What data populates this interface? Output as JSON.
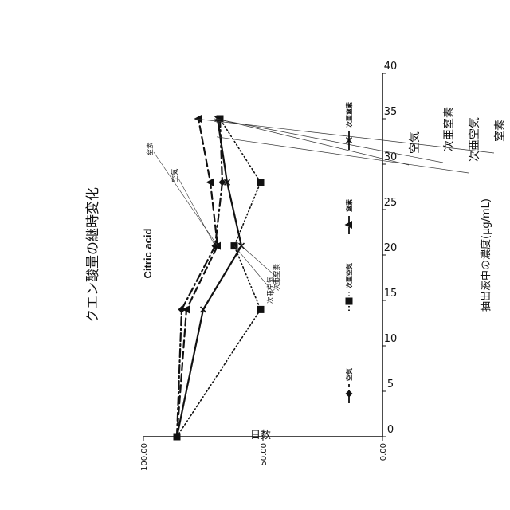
{
  "chart_data": {
    "type": "line",
    "title": "クエン酸量の継時変化",
    "subtitle": "Citric acid",
    "xlabel": "日数",
    "ylabel": "抽出液中の濃度(μg/mL)",
    "xlim": [
      0,
      40
    ],
    "ylim": [
      0,
      100
    ],
    "x_ticks": [
      "0",
      "5",
      "10",
      "15",
      "20",
      "25",
      "30",
      "35",
      "40"
    ],
    "y_ticks": [
      "0.00",
      "50.00",
      "100.00"
    ],
    "grid": false,
    "legend_position": "bottom",
    "series": [
      {
        "name": "空気",
        "style": "dash-dot",
        "marker": "diamond",
        "x": [
          0,
          14,
          21,
          28,
          35
        ],
        "y": [
          86,
          84,
          70,
          67,
          68
        ]
      },
      {
        "name": "次亜空気",
        "style": "dotted",
        "marker": "square",
        "x": [
          0,
          14,
          21,
          28,
          35
        ],
        "y": [
          86,
          51,
          62,
          51,
          68
        ]
      },
      {
        "name": "窒素",
        "style": "dashed",
        "marker": "triangle",
        "x": [
          0,
          14,
          21,
          28,
          35
        ],
        "y": [
          86,
          82,
          69,
          72,
          77
        ]
      },
      {
        "name": "次亜窒素",
        "style": "solid",
        "marker": "x",
        "x": [
          0,
          14,
          21,
          28,
          35
        ],
        "y": [
          86,
          75,
          59,
          65,
          69
        ]
      }
    ],
    "annotations_right": [
      {
        "label": "空気",
        "series": "空気"
      },
      {
        "label": "次亜窒素",
        "series": "次亜窒素"
      },
      {
        "label": "次亜空気",
        "series": "次亜空気"
      },
      {
        "label": "窒素",
        "series": "窒素"
      }
    ],
    "annotations_mid": [
      {
        "label": "窒素",
        "series": "窒素"
      },
      {
        "label": "空気",
        "series": "空気"
      },
      {
        "label": "次亜窒素",
        "series": "次亜窒素"
      },
      {
        "label": "次亜空気",
        "series": "次亜空気"
      }
    ]
  }
}
